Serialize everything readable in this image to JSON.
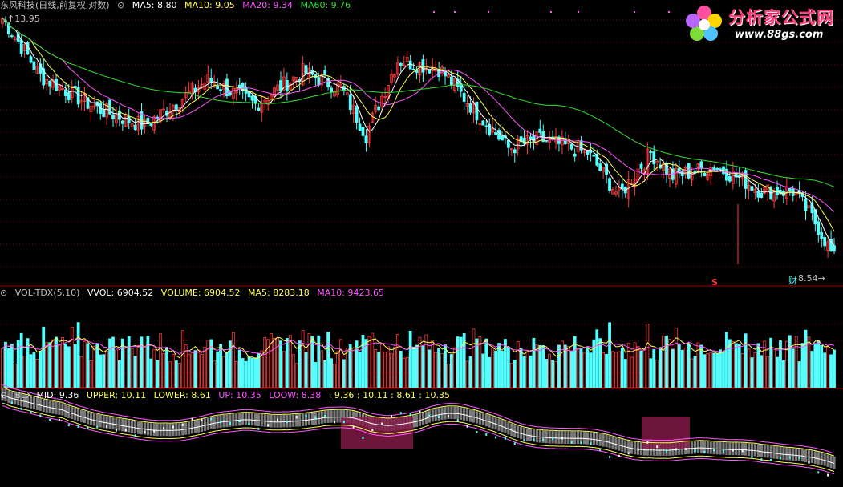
{
  "colors": {
    "bg": "#000000",
    "up": "#ff3b3b",
    "down": "#54ffff",
    "grid": "#7a0000",
    "ma5": "#ffffff",
    "ma10": "#ffff55",
    "ma20": "#ff55ff",
    "ma60": "#33dd33",
    "label": "#c0c0c0"
  },
  "header": {
    "title": "东风科技(日线,前复权,对数)",
    "ma5": "MA5: 8.80",
    "ma10": "MA10: 9.05",
    "ma20": "MA20: 9.34",
    "ma60": "MA60: 9.76"
  },
  "price_labels": {
    "high": "13.95",
    "low": "8.54",
    "marker_s": "S",
    "marker_cai": "财"
  },
  "vol_header": {
    "name": "VOL-TDX(5,10)",
    "vvol": "VVOL: 6904.52",
    "volume": "VOLUME: 6904.52",
    "ma5": "MA5: 8283.18",
    "ma10": "MA10: 9423.65"
  },
  "blx_header": {
    "name": "BLX",
    "mid": "MID: 9.36",
    "upper": "UPPER: 10.11",
    "lower": "LOWER: 8.61",
    "up": "UP: 10.35",
    "loow": "LOOW: 8.38",
    "extra": ": 9.36 : 10.11 : 8.61 : 10.35"
  },
  "logo": {
    "cn": "分析家公式网",
    "url": "www.88gs.com",
    "icon": "flower-logo-icon"
  },
  "chart_data": {
    "type": "candlestick",
    "price_range": [
      8.3,
      14.2
    ],
    "key_points": [
      {
        "i": 0,
        "p": 13.95
      },
      {
        "i": 12,
        "p": 12.4
      },
      {
        "i": 30,
        "p": 11.6
      },
      {
        "i": 45,
        "p": 11.2
      },
      {
        "i": 65,
        "p": 12.3
      },
      {
        "i": 80,
        "p": 11.7
      },
      {
        "i": 95,
        "p": 12.5
      },
      {
        "i": 107,
        "p": 12.1
      },
      {
        "i": 115,
        "p": 11.0
      },
      {
        "i": 125,
        "p": 12.8
      },
      {
        "i": 138,
        "p": 12.6
      },
      {
        "i": 150,
        "p": 11.5
      },
      {
        "i": 160,
        "p": 10.7
      },
      {
        "i": 170,
        "p": 10.9
      },
      {
        "i": 185,
        "p": 10.6
      },
      {
        "i": 195,
        "p": 9.7
      },
      {
        "i": 205,
        "p": 10.6
      },
      {
        "i": 212,
        "p": 10.1
      },
      {
        "i": 225,
        "p": 10.3
      },
      {
        "i": 232,
        "p": 10.1
      },
      {
        "i": 240,
        "p": 9.8
      },
      {
        "i": 250,
        "p": 9.8
      },
      {
        "i": 258,
        "p": 9.1
      },
      {
        "i": 263,
        "p": 8.54
      }
    ],
    "volume_range": [
      0,
      16000
    ],
    "volume_last": 6904.52,
    "volume_ma5": 8283.18,
    "volume_ma10": 9423.65,
    "blx": {
      "mid": 9.36,
      "upper": 10.11,
      "lower": 8.61,
      "up": 10.35,
      "loow": 8.38
    }
  }
}
